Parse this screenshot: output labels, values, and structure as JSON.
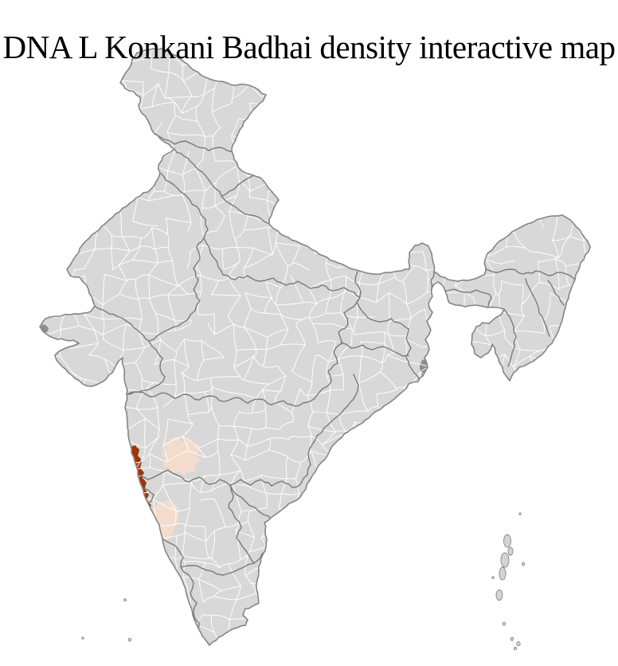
{
  "title": "DNA L Konkani Badhai density interactive map",
  "map": {
    "background": "#ffffff",
    "base_fill": "#d8d8d8",
    "district_line": "#ffffff",
    "state_line": "#7a7a7a",
    "outline": "#858585",
    "dense_area": "#8d8d8d",
    "island_fill": "#d4d4d4"
  },
  "density": {
    "high_color": "#a23503",
    "low_color": "#f3dccc",
    "regions": [
      {
        "id": "west-coast-strip",
        "level": "high",
        "color": "#a23503"
      },
      {
        "id": "inland-district-north",
        "level": "low",
        "color": "#f3dccc"
      },
      {
        "id": "inland-district-south",
        "level": "low",
        "color": "#f3dccc"
      }
    ]
  }
}
